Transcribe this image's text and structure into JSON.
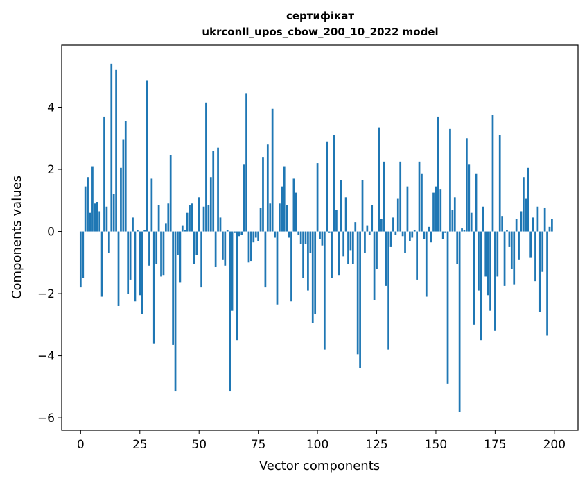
{
  "chart_data": {
    "type": "bar",
    "title": "сертифікат",
    "subtitle": "ukrconll_upos_cbow_200_10_2022 model",
    "xlabel": "Vector components",
    "ylabel": "Components values",
    "xlim": [
      -8,
      210
    ],
    "ylim": [
      -6.4,
      6.0
    ],
    "xticks": [
      0,
      25,
      50,
      75,
      100,
      125,
      150,
      175,
      200
    ],
    "yticks": [
      -6,
      -4,
      -2,
      0,
      2,
      4
    ],
    "grid": false,
    "bar_color": "#1f77b4",
    "x": [
      0,
      1,
      2,
      3,
      4,
      5,
      6,
      7,
      8,
      9,
      10,
      11,
      12,
      13,
      14,
      15,
      16,
      17,
      18,
      19,
      20,
      21,
      22,
      23,
      24,
      25,
      26,
      27,
      28,
      29,
      30,
      31,
      32,
      33,
      34,
      35,
      36,
      37,
      38,
      39,
      40,
      41,
      42,
      43,
      44,
      45,
      46,
      47,
      48,
      49,
      50,
      51,
      52,
      53,
      54,
      55,
      56,
      57,
      58,
      59,
      60,
      61,
      62,
      63,
      64,
      65,
      66,
      67,
      68,
      69,
      70,
      71,
      72,
      73,
      74,
      75,
      76,
      77,
      78,
      79,
      80,
      81,
      82,
      83,
      84,
      85,
      86,
      87,
      88,
      89,
      90,
      91,
      92,
      93,
      94,
      95,
      96,
      97,
      98,
      99,
      100,
      101,
      102,
      103,
      104,
      105,
      106,
      107,
      108,
      109,
      110,
      111,
      112,
      113,
      114,
      115,
      116,
      117,
      118,
      119,
      120,
      121,
      122,
      123,
      124,
      125,
      126,
      127,
      128,
      129,
      130,
      131,
      132,
      133,
      134,
      135,
      136,
      137,
      138,
      139,
      140,
      141,
      142,
      143,
      144,
      145,
      146,
      147,
      148,
      149,
      150,
      151,
      152,
      153,
      154,
      155,
      156,
      157,
      158,
      159,
      160,
      161,
      162,
      163,
      164,
      165,
      166,
      167,
      168,
      169,
      170,
      171,
      172,
      173,
      174,
      175,
      176,
      177,
      178,
      179,
      180,
      181,
      182,
      183,
      184,
      185,
      186,
      187,
      188,
      189,
      190,
      191,
      192,
      193,
      194,
      195,
      196,
      197,
      198,
      199
    ],
    "values": [
      -1.8,
      -1.5,
      1.45,
      1.75,
      0.6,
      2.1,
      0.9,
      0.95,
      0.65,
      -2.1,
      3.7,
      0.8,
      -0.7,
      5.4,
      1.2,
      5.2,
      -2.4,
      2.05,
      2.95,
      3.55,
      -2.0,
      -1.55,
      0.45,
      -2.25,
      0.05,
      -2.05,
      -2.65,
      0.05,
      4.85,
      -1.1,
      1.7,
      -3.6,
      -1.05,
      0.85,
      -1.45,
      -1.4,
      0.25,
      0.9,
      2.45,
      -3.65,
      -5.15,
      -0.75,
      -1.65,
      0.2,
      0.05,
      0.6,
      0.85,
      0.9,
      -1.05,
      -0.75,
      1.1,
      -1.8,
      0.8,
      4.15,
      0.85,
      1.75,
      2.6,
      -1.15,
      2.7,
      0.45,
      -0.9,
      -1.1,
      0.05,
      -5.15,
      -2.55,
      -0.05,
      -3.5,
      -0.15,
      -0.1,
      2.15,
      4.45,
      -1.0,
      -0.95,
      -0.35,
      -0.2,
      -0.3,
      0.75,
      2.4,
      -1.8,
      2.8,
      0.9,
      3.95,
      -0.2,
      -2.35,
      0.9,
      1.45,
      2.1,
      0.85,
      -0.2,
      -2.25,
      1.7,
      1.25,
      -0.1,
      -0.4,
      -1.5,
      -0.4,
      -1.9,
      -0.7,
      -2.95,
      -2.65,
      2.2,
      -0.25,
      -0.45,
      -3.8,
      2.9,
      -0.05,
      -1.5,
      3.1,
      0.7,
      -1.4,
      1.65,
      -0.8,
      1.1,
      -1.05,
      -0.6,
      -1.05,
      0.3,
      -3.95,
      -4.4,
      1.65,
      -0.7,
      0.2,
      -0.1,
      0.85,
      -2.2,
      -1.2,
      3.35,
      0.4,
      2.25,
      -1.75,
      -3.8,
      -0.5,
      0.45,
      -0.1,
      1.05,
      2.25,
      -0.15,
      -0.7,
      1.45,
      -0.3,
      -0.2,
      0.05,
      -1.55,
      2.25,
      1.85,
      -0.25,
      -2.1,
      0.15,
      -0.35,
      1.25,
      1.45,
      3.7,
      1.35,
      -0.25,
      -0.05,
      -4.9,
      3.3,
      0.7,
      1.1,
      -1.05,
      -5.8,
      0.1,
      0.05,
      3.0,
      2.15,
      0.6,
      -3.0,
      1.85,
      -1.9,
      -3.5,
      0.8,
      -1.45,
      -2.05,
      -2.55,
      3.75,
      -3.2,
      -1.45,
      3.1,
      0.5,
      -1.75,
      0.05,
      -0.5,
      -1.2,
      -1.7,
      0.4,
      -0.9,
      0.65,
      1.75,
      1.05,
      2.05,
      -0.85,
      0.45,
      -1.6,
      0.8,
      -2.6,
      -1.3,
      0.75,
      -3.35,
      0.15,
      0.4
    ]
  }
}
